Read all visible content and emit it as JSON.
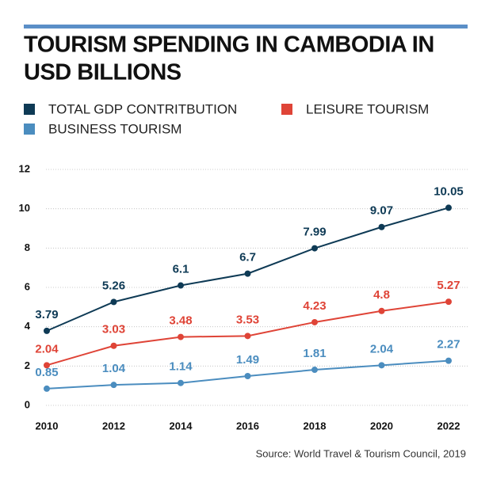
{
  "chart_data": {
    "type": "line",
    "title_lines": [
      "TOURISM SPENDING IN CAMBODIA IN",
      "USD BILLIONS"
    ],
    "x": [
      2010,
      2012,
      2014,
      2016,
      2018,
      2020,
      2022
    ],
    "xlim": [
      2010,
      2022
    ],
    "series": [
      {
        "name": "TOTAL GDP CONTRITBUTION",
        "color": "#0e3a55",
        "values": [
          3.79,
          5.26,
          6.1,
          6.7,
          7.99,
          9.07,
          10.05
        ]
      },
      {
        "name": "LEISURE TOURISM",
        "color": "#df4437",
        "values": [
          2.04,
          3.03,
          3.48,
          3.53,
          4.23,
          4.8,
          5.27
        ]
      },
      {
        "name": "BUSINESS TOURISM",
        "color": "#4b8dbf",
        "values": [
          0.85,
          1.04,
          1.14,
          1.49,
          1.81,
          2.04,
          2.27
        ]
      }
    ],
    "ylim": [
      0,
      12
    ],
    "yticks": [
      0,
      2,
      4,
      6,
      8,
      10,
      12
    ],
    "grid": true,
    "source": "Source:  World Travel & Tourism Council, 2019"
  }
}
